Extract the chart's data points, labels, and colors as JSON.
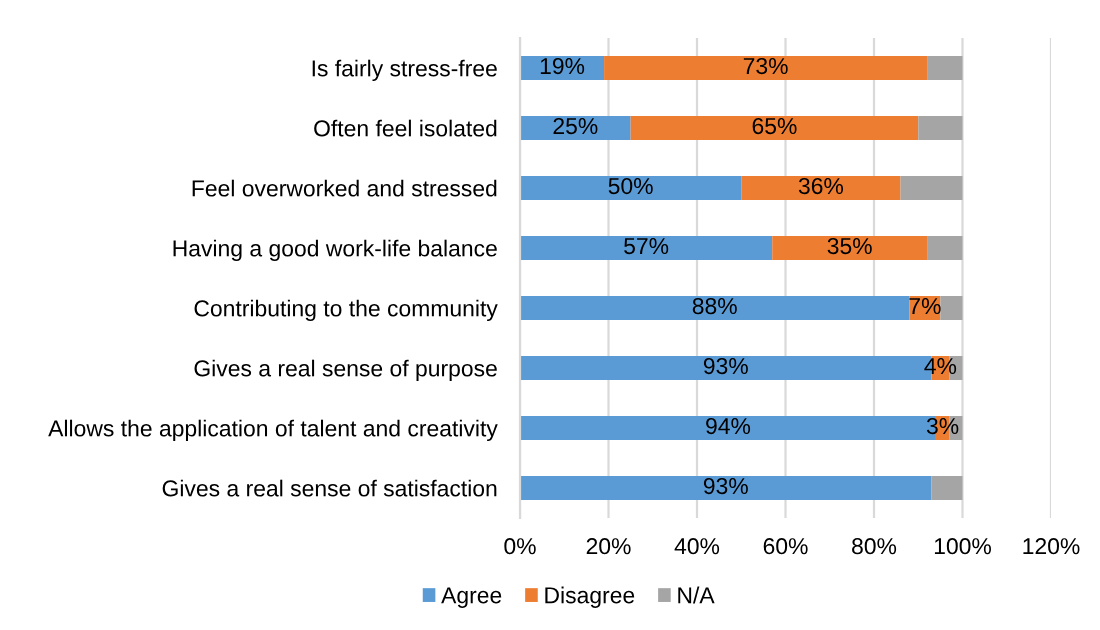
{
  "chart_data": {
    "type": "bar",
    "orientation": "horizontal",
    "stacked": true,
    "categories": [
      "Is fairly stress-free",
      "Often feel isolated",
      "Feel overworked and stressed",
      "Having a good work-life balance",
      "Contributing to the community",
      "Gives a real sense of purpose",
      "Allows the application of talent and creativity",
      "Gives a real sense of satisfaction"
    ],
    "series": [
      {
        "name": "Agree",
        "color": "#5b9bd5",
        "values": [
          19,
          25,
          50,
          57,
          88,
          93,
          94,
          93
        ],
        "value_labels": [
          "19%",
          "25%",
          "50%",
          "57%",
          "88%",
          "93%",
          "94%",
          "93%"
        ]
      },
      {
        "name": "Disagree",
        "color": "#ed7d31",
        "values": [
          73,
          65,
          36,
          35,
          7,
          4,
          3,
          null
        ],
        "value_labels": [
          "73%",
          "65%",
          "36%",
          "35%",
          "7%",
          "4%",
          "3%",
          null
        ]
      },
      {
        "name": "N/A",
        "color": "#a5a5a5",
        "values": [
          8,
          10,
          14,
          8,
          5,
          3,
          3,
          7
        ]
      }
    ],
    "xlim": [
      0,
      120
    ],
    "xticks": [
      {
        "value": 0,
        "label": "0%"
      },
      {
        "value": 20,
        "label": "20%"
      },
      {
        "value": 40,
        "label": "40%"
      },
      {
        "value": 60,
        "label": "60%"
      },
      {
        "value": 80,
        "label": "80%"
      },
      {
        "value": 100,
        "label": "100%"
      },
      {
        "value": 120,
        "label": "120%"
      }
    ],
    "grid": "x",
    "legend": "bottom"
  }
}
